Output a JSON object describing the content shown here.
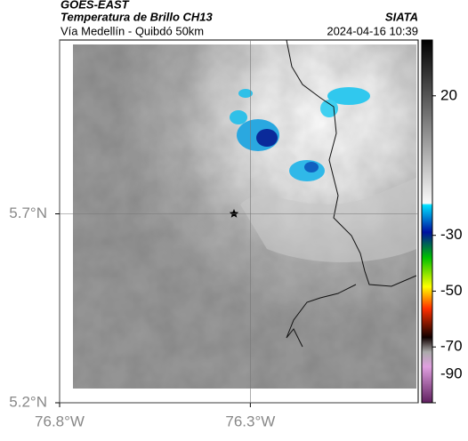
{
  "header": {
    "satellite": "GOES-EAST",
    "product": "Temperatura de Brillo CH13",
    "source": "SIATA",
    "region": "Vía Medellín - Quibdó 50km",
    "datetime": "2024-04-16 10:39"
  },
  "map": {
    "xlim": [
      -76.8,
      -75.86
    ],
    "ylim": [
      5.2,
      6.16
    ],
    "grid": true,
    "xticks": [
      {
        "value": -76.8,
        "label": "76.8°W"
      },
      {
        "value": -76.3,
        "label": "76.3°W"
      }
    ],
    "yticks": [
      {
        "value": 5.2,
        "label": "5.2°N"
      },
      {
        "value": 5.7,
        "label": "5.7°N"
      }
    ]
  },
  "colorbar": {
    "lim": [
      40,
      -90
    ],
    "ticks": [
      20,
      -30,
      -50,
      -70,
      -90
    ]
  }
}
